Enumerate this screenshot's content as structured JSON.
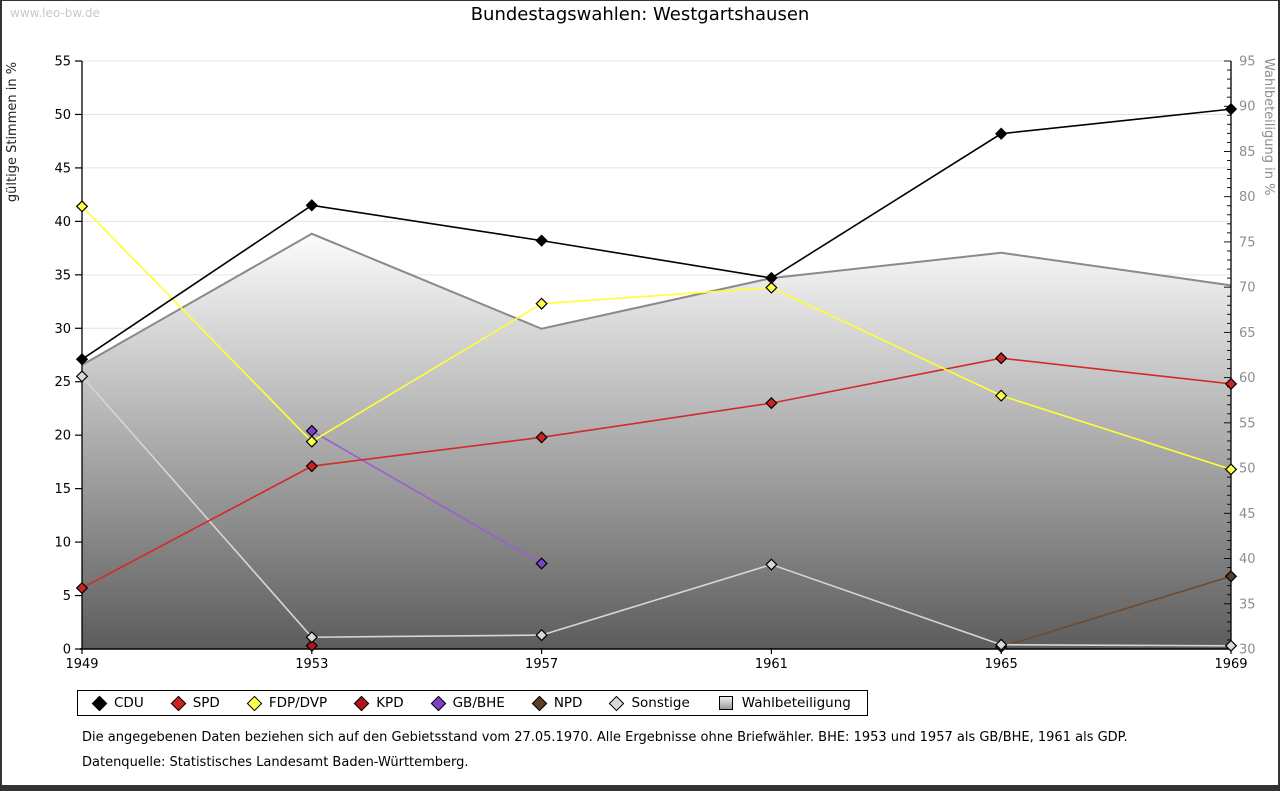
{
  "watermark": "www.leo-bw.de",
  "title": "Bundestagswahlen: Westgartshausen",
  "footnotes": [
    "Die angegebenen Daten beziehen sich auf den Gebietsstand vom 27.05.1970. Alle Ergebnisse ohne Briefwähler. BHE: 1953 und 1957 als GB/BHE, 1961 als GDP.",
    "Datenquelle: Statistisches Landesamt Baden-Württemberg."
  ],
  "colors": {
    "grid": "#e3e3e3",
    "axis": "#000000",
    "right_axis_text": "#8e8e8e",
    "left_axis_text": "#000000",
    "area_top": "#fcfcfc",
    "area_bottom": "#5c5c5c",
    "area_border": "#8a8a8a",
    "watermark": "#c9c9c9"
  },
  "chart_data": {
    "type": "line",
    "title": "Bundestagswahlen: Westgartshausen",
    "x_categories": [
      "1949",
      "1953",
      "1957",
      "1961",
      "1965",
      "1969"
    ],
    "ylabel_left": "gültige Stimmen in %",
    "ylabel_right": "Wahlbeteiligung in %",
    "ylim_left": [
      0,
      55
    ],
    "ylim_right": [
      30,
      95
    ],
    "ytick_step": 5,
    "grid": true,
    "legend_position": "bottom",
    "series": [
      {
        "name": "CDU",
        "axis": "left",
        "color": "#000000",
        "marker_color": "#000000",
        "values": [
          27.1,
          41.5,
          38.2,
          34.7,
          48.2,
          50.5
        ]
      },
      {
        "name": "SPD",
        "axis": "left",
        "color": "#d32a2a",
        "marker_color": "#cc2222",
        "values": [
          5.7,
          17.1,
          19.8,
          23.0,
          27.2,
          24.8
        ]
      },
      {
        "name": "FDP/DVP",
        "axis": "left",
        "color": "#ffff33",
        "marker_color": "#ffff4d",
        "values": [
          41.4,
          19.4,
          32.3,
          33.8,
          23.7,
          16.8
        ]
      },
      {
        "name": "KPD",
        "axis": "left",
        "color": "#aa1016",
        "marker_color": "#b3131a",
        "values": [
          null,
          0.3,
          null,
          null,
          null,
          null
        ]
      },
      {
        "name": "GB/BHE",
        "axis": "left",
        "color": "#9a5fd0",
        "marker_color": "#7d42c6",
        "values": [
          null,
          20.4,
          8.0,
          null,
          null,
          null
        ]
      },
      {
        "name": "NPD",
        "axis": "left",
        "color": "#6e4a2f",
        "marker_color": "#5e3d26",
        "values": [
          null,
          null,
          null,
          null,
          0.2,
          6.8
        ]
      },
      {
        "name": "Sonstige",
        "axis": "left",
        "color": "#d6d6d6",
        "marker_color": "#d9d9d9",
        "values": [
          25.5,
          1.1,
          1.3,
          7.9,
          0.4,
          0.3
        ]
      },
      {
        "name": "Wahlbeteiligung",
        "axis": "right",
        "color": "#8a8a8a",
        "type": "area",
        "values": [
          61.4,
          75.9,
          65.4,
          71.0,
          73.8,
          70.2
        ]
      }
    ]
  }
}
